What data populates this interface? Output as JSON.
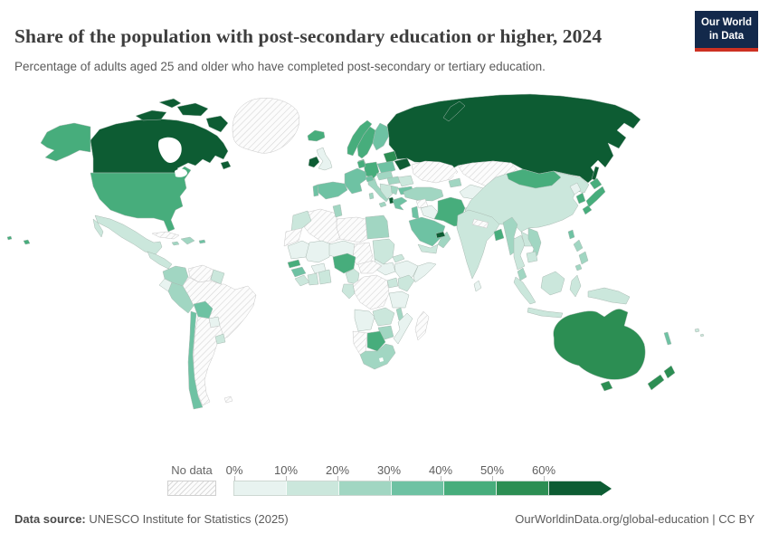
{
  "header": {
    "title": "Share of the population with post-secondary education or higher, 2024",
    "subtitle": "Percentage of adults aged 25 and older who have completed post-secondary or tertiary education."
  },
  "logo": {
    "line1": "Our World",
    "line2": "in Data",
    "bg_color": "#13294b",
    "accent_color": "#cd3122"
  },
  "legend": {
    "no_data_label": "No data",
    "tick_labels": [
      "0%",
      "10%",
      "20%",
      "30%",
      "40%",
      "50%",
      "60%"
    ],
    "buckets": [
      {
        "range": "0-10%",
        "color": "#e8f3f0"
      },
      {
        "range": "10-20%",
        "color": "#cbe7dc"
      },
      {
        "range": "20-30%",
        "color": "#a1d6c2"
      },
      {
        "range": "30-40%",
        "color": "#6ec2a3"
      },
      {
        "range": "40-50%",
        "color": "#47ad7c"
      },
      {
        "range": "50-60%",
        "color": "#2c8e53"
      },
      {
        "range": "60%+",
        "color": "#0d5c33"
      }
    ],
    "no_data_pattern": "diagonal-gray-hatch"
  },
  "footer": {
    "source_label": "Data source:",
    "source_value": "UNESCO Institute for Statistics (2025)",
    "credit": "OurWorldinData.org/global-education | CC BY"
  },
  "chart_data": {
    "type": "choropleth",
    "title": "Share of the population with post-secondary education or higher",
    "year": "2024",
    "unit": "%",
    "legend_position": "bottom",
    "value_buckets": [
      "0-10%",
      "10-20%",
      "20-30%",
      "30-40%",
      "40-50%",
      "50-60%",
      "60%+",
      "no-data"
    ],
    "regions": [
      {
        "id": "canada",
        "name": "Canada",
        "bucket": "60%+"
      },
      {
        "id": "greenland",
        "name": "Greenland",
        "bucket": "no-data"
      },
      {
        "id": "usa",
        "name": "United States",
        "bucket": "40-50%"
      },
      {
        "id": "mexico",
        "name": "Mexico",
        "bucket": "10-20%"
      },
      {
        "id": "central-america-north",
        "name": "Guatemala-Nicaragua",
        "bucket": "10-20%"
      },
      {
        "id": "costa-rica-panama",
        "name": "Costa Rica-Panama",
        "bucket": "20-30%"
      },
      {
        "id": "cuba",
        "name": "Cuba",
        "bucket": "no-data"
      },
      {
        "id": "dominican-republic",
        "name": "Dominican Republic",
        "bucket": "20-30%"
      },
      {
        "id": "jamaica",
        "name": "Jamaica",
        "bucket": "20-30%"
      },
      {
        "id": "puerto-rico",
        "name": "Puerto Rico",
        "bucket": "30-40%"
      },
      {
        "id": "colombia",
        "name": "Colombia",
        "bucket": "20-30%"
      },
      {
        "id": "venezuela",
        "name": "Venezuela",
        "bucket": "no-data"
      },
      {
        "id": "guyana-suriname",
        "name": "Guyana-Suriname",
        "bucket": "10-20%"
      },
      {
        "id": "ecuador",
        "name": "Ecuador",
        "bucket": "0-10%"
      },
      {
        "id": "peru",
        "name": "Peru",
        "bucket": "20-30%"
      },
      {
        "id": "brazil",
        "name": "Brazil",
        "bucket": "no-data"
      },
      {
        "id": "bolivia",
        "name": "Bolivia",
        "bucket": "30-40%"
      },
      {
        "id": "paraguay",
        "name": "Paraguay",
        "bucket": "0-10%"
      },
      {
        "id": "uruguay",
        "name": "Uruguay",
        "bucket": "10-20%"
      },
      {
        "id": "chile",
        "name": "Chile",
        "bucket": "30-40%"
      },
      {
        "id": "argentina",
        "name": "Argentina",
        "bucket": "no-data"
      },
      {
        "id": "falkland",
        "name": "Falkland Islands",
        "bucket": "no-data"
      },
      {
        "id": "iceland",
        "name": "Iceland",
        "bucket": "40-50%"
      },
      {
        "id": "ireland",
        "name": "Ireland",
        "bucket": "60%+"
      },
      {
        "id": "uk",
        "name": "United Kingdom",
        "bucket": "0-10%"
      },
      {
        "id": "norway",
        "name": "Norway",
        "bucket": "40-50%"
      },
      {
        "id": "sweden",
        "name": "Sweden",
        "bucket": "40-50%"
      },
      {
        "id": "finland",
        "name": "Finland",
        "bucket": "30-40%"
      },
      {
        "id": "denmark",
        "name": "Denmark",
        "bucket": "40-50%"
      },
      {
        "id": "baltic-states",
        "name": "Baltic states",
        "bucket": "50-60%"
      },
      {
        "id": "belarus",
        "name": "Belarus",
        "bucket": "60%+"
      },
      {
        "id": "poland",
        "name": "Poland",
        "bucket": "30-40%"
      },
      {
        "id": "germany",
        "name": "Germany",
        "bucket": "40-50%"
      },
      {
        "id": "benelux",
        "name": "Netherlands-Belgium",
        "bucket": "40-50%"
      },
      {
        "id": "france",
        "name": "France",
        "bucket": "30-40%"
      },
      {
        "id": "spain",
        "name": "Spain",
        "bucket": "30-40%"
      },
      {
        "id": "portugal",
        "name": "Portugal",
        "bucket": "30-40%"
      },
      {
        "id": "italy",
        "name": "Italy",
        "bucket": "20-30%"
      },
      {
        "id": "switzerland",
        "name": "Switzerland",
        "bucket": "30-40%"
      },
      {
        "id": "austria-czechia",
        "name": "Austria-Czechia",
        "bucket": "20-30%"
      },
      {
        "id": "hungary-slovakia",
        "name": "Hungary-Slovakia",
        "bucket": "20-30%"
      },
      {
        "id": "romania",
        "name": "Romania",
        "bucket": "10-20%"
      },
      {
        "id": "west-balkans",
        "name": "Western Balkans",
        "bucket": "10-20%"
      },
      {
        "id": "serbia",
        "name": "Serbia",
        "bucket": "20-30%"
      },
      {
        "id": "albania",
        "name": "Albania",
        "bucket": "60%+"
      },
      {
        "id": "greece",
        "name": "Greece",
        "bucket": "30-40%"
      },
      {
        "id": "bulgaria",
        "name": "Bulgaria",
        "bucket": "30-40%"
      },
      {
        "id": "ukraine",
        "name": "Ukraine",
        "bucket": "no-data"
      },
      {
        "id": "turkey",
        "name": "Turkey",
        "bucket": "20-30%"
      },
      {
        "id": "russia",
        "name": "Russia",
        "bucket": "60%+"
      },
      {
        "id": "kazakhstan",
        "name": "Kazakhstan",
        "bucket": "no-data"
      },
      {
        "id": "uzbekistan-turkmenistan",
        "name": "Uzbekistan-Turkmenistan",
        "bucket": "0-10%"
      },
      {
        "id": "kyrgyzstan-tajikistan",
        "name": "Kyrgyzstan-Tajikistan",
        "bucket": "10-20%"
      },
      {
        "id": "caucasus",
        "name": "Caucasus",
        "bucket": "20-30%"
      },
      {
        "id": "syria",
        "name": "Syria",
        "bucket": "no-data"
      },
      {
        "id": "iraq",
        "name": "Iraq",
        "bucket": "0-10%"
      },
      {
        "id": "israel-jordan",
        "name": "Israel-Jordan",
        "bucket": "30-40%"
      },
      {
        "id": "iran",
        "name": "Iran",
        "bucket": "40-50%"
      },
      {
        "id": "afghanistan",
        "name": "Afghanistan",
        "bucket": "0-10%"
      },
      {
        "id": "pakistan",
        "name": "Pakistan",
        "bucket": "0-10%"
      },
      {
        "id": "saudi-arabia",
        "name": "Saudi Arabia",
        "bucket": "30-40%"
      },
      {
        "id": "yemen",
        "name": "Yemen",
        "bucket": "10-20%"
      },
      {
        "id": "oman",
        "name": "Oman",
        "bucket": "20-30%"
      },
      {
        "id": "uae-qatar",
        "name": "UAE-Qatar",
        "bucket": "60%+"
      },
      {
        "id": "egypt",
        "name": "Egypt",
        "bucket": "20-30%"
      },
      {
        "id": "libya",
        "name": "Libya",
        "bucket": "no-data"
      },
      {
        "id": "algeria",
        "name": "Algeria",
        "bucket": "no-data"
      },
      {
        "id": "tunisia",
        "name": "Tunisia",
        "bucket": "20-30%"
      },
      {
        "id": "morocco",
        "name": "Morocco",
        "bucket": "10-20%"
      },
      {
        "id": "western-sahara",
        "name": "Western Sahara",
        "bucket": "no-data"
      },
      {
        "id": "mauritania",
        "name": "Mauritania",
        "bucket": "0-10%"
      },
      {
        "id": "mali",
        "name": "Mali",
        "bucket": "0-10%"
      },
      {
        "id": "niger",
        "name": "Niger",
        "bucket": "0-10%"
      },
      {
        "id": "chad",
        "name": "Chad",
        "bucket": "no-data"
      },
      {
        "id": "sudan",
        "name": "Sudan",
        "bucket": "10-20%"
      },
      {
        "id": "eritrea",
        "name": "Eritrea",
        "bucket": "10-20%"
      },
      {
        "id": "ethiopia",
        "name": "Ethiopia",
        "bucket": "0-10%"
      },
      {
        "id": "somalia",
        "name": "Somalia",
        "bucket": "0-10%"
      },
      {
        "id": "south-sudan",
        "name": "South Sudan",
        "bucket": "0-10%"
      },
      {
        "id": "senegal",
        "name": "Senegal",
        "bucket": "40-50%"
      },
      {
        "id": "guinea",
        "name": "Guinea",
        "bucket": "30-40%"
      },
      {
        "id": "sierra-leone-liberia",
        "name": "Sierra Leone-Liberia",
        "bucket": "10-20%"
      },
      {
        "id": "ivory-coast",
        "name": "Côte d'Ivoire",
        "bucket": "10-20%"
      },
      {
        "id": "ghana",
        "name": "Ghana-Togo-Benin",
        "bucket": "10-20%"
      },
      {
        "id": "burkina-faso",
        "name": "Burkina Faso",
        "bucket": "0-10%"
      },
      {
        "id": "nigeria",
        "name": "Nigeria",
        "bucket": "40-50%"
      },
      {
        "id": "cameroon",
        "name": "Cameroon",
        "bucket": "10-20%"
      },
      {
        "id": "central-african-republic",
        "name": "Central African Republic",
        "bucket": "no-data"
      },
      {
        "id": "drc",
        "name": "Democratic Republic of Congo",
        "bucket": "no-data"
      },
      {
        "id": "congo-gabon",
        "name": "Congo-Gabon",
        "bucket": "10-20%"
      },
      {
        "id": "uganda",
        "name": "Uganda",
        "bucket": "10-20%"
      },
      {
        "id": "kenya",
        "name": "Kenya",
        "bucket": "10-20%"
      },
      {
        "id": "tanzania",
        "name": "Tanzania",
        "bucket": "0-10%"
      },
      {
        "id": "angola",
        "name": "Angola",
        "bucket": "0-10%"
      },
      {
        "id": "zambia",
        "name": "Zambia",
        "bucket": "10-20%"
      },
      {
        "id": "malawi",
        "name": "Malawi",
        "bucket": "20-30%"
      },
      {
        "id": "mozambique",
        "name": "Mozambique",
        "bucket": "0-10%"
      },
      {
        "id": "zimbabwe",
        "name": "Zimbabwe",
        "bucket": "20-30%"
      },
      {
        "id": "botswana",
        "name": "Botswana",
        "bucket": "40-50%"
      },
      {
        "id": "namibia",
        "name": "Namibia",
        "bucket": "no-data"
      },
      {
        "id": "south-africa",
        "name": "South Africa",
        "bucket": "20-30%"
      },
      {
        "id": "madagascar",
        "name": "Madagascar",
        "bucket": "no-data"
      },
      {
        "id": "india",
        "name": "India",
        "bucket": "10-20%"
      },
      {
        "id": "nepal",
        "name": "Nepal",
        "bucket": "no-data"
      },
      {
        "id": "bangladesh",
        "name": "Bangladesh",
        "bucket": "40-50%"
      },
      {
        "id": "sri-lanka",
        "name": "Sri Lanka",
        "bucket": "0-10%"
      },
      {
        "id": "myanmar",
        "name": "Myanmar",
        "bucket": "20-30%"
      },
      {
        "id": "thailand",
        "name": "Thailand",
        "bucket": "10-20%"
      },
      {
        "id": "laos",
        "name": "Laos",
        "bucket": "10-20%"
      },
      {
        "id": "vietnam",
        "name": "Vietnam",
        "bucket": "20-30%"
      },
      {
        "id": "cambodia",
        "name": "Cambodia",
        "bucket": "10-20%"
      },
      {
        "id": "malaysia",
        "name": "Malaysia",
        "bucket": "20-30%"
      },
      {
        "id": "indonesia",
        "name": "Indonesia",
        "bucket": "10-20%"
      },
      {
        "id": "philippines",
        "name": "Philippines",
        "bucket": "20-30%"
      },
      {
        "id": "china",
        "name": "China",
        "bucket": "10-20%"
      },
      {
        "id": "mongolia",
        "name": "Mongolia",
        "bucket": "40-50%"
      },
      {
        "id": "north-korea",
        "name": "North Korea",
        "bucket": "0-10%"
      },
      {
        "id": "south-korea",
        "name": "South Korea",
        "bucket": "40-50%"
      },
      {
        "id": "japan",
        "name": "Japan",
        "bucket": "40-50%"
      },
      {
        "id": "taiwan",
        "name": "Taiwan",
        "bucket": "30-40%"
      },
      {
        "id": "new-guinea",
        "name": "Papua New Guinea",
        "bucket": "10-20%"
      },
      {
        "id": "australia",
        "name": "Australia",
        "bucket": "50-60%"
      },
      {
        "id": "new-zealand",
        "name": "New Zealand",
        "bucket": "50-60%"
      },
      {
        "id": "new-caledonia",
        "name": "New Caledonia",
        "bucket": "30-40%"
      },
      {
        "id": "fiji",
        "name": "Fiji",
        "bucket": "10-20%"
      }
    ]
  }
}
